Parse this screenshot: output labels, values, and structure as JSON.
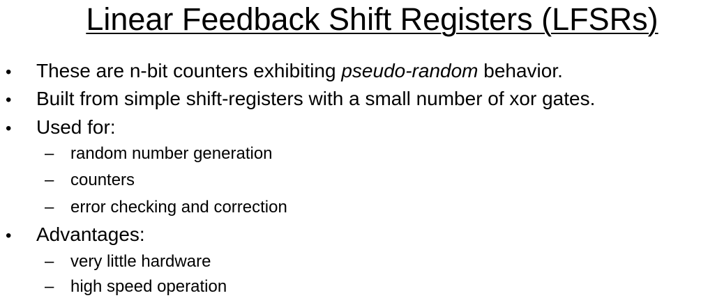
{
  "slide": {
    "title": "Linear Feedback Shift Registers (LFSRs)",
    "bullet_marker": "•",
    "sub_marker": "–",
    "items": [
      {
        "pre": "These are n-bit counters exhibiting ",
        "em": "pseudo-random",
        "post": " behavior."
      },
      {
        "text": "Built from simple shift-registers with a small number of xor gates."
      },
      {
        "text": "Used for:",
        "subitems": [
          "random number generation",
          "counters",
          "error checking and correction"
        ]
      },
      {
        "text": "Advantages:",
        "subitems": [
          "very little hardware",
          "high speed operation"
        ]
      }
    ]
  }
}
